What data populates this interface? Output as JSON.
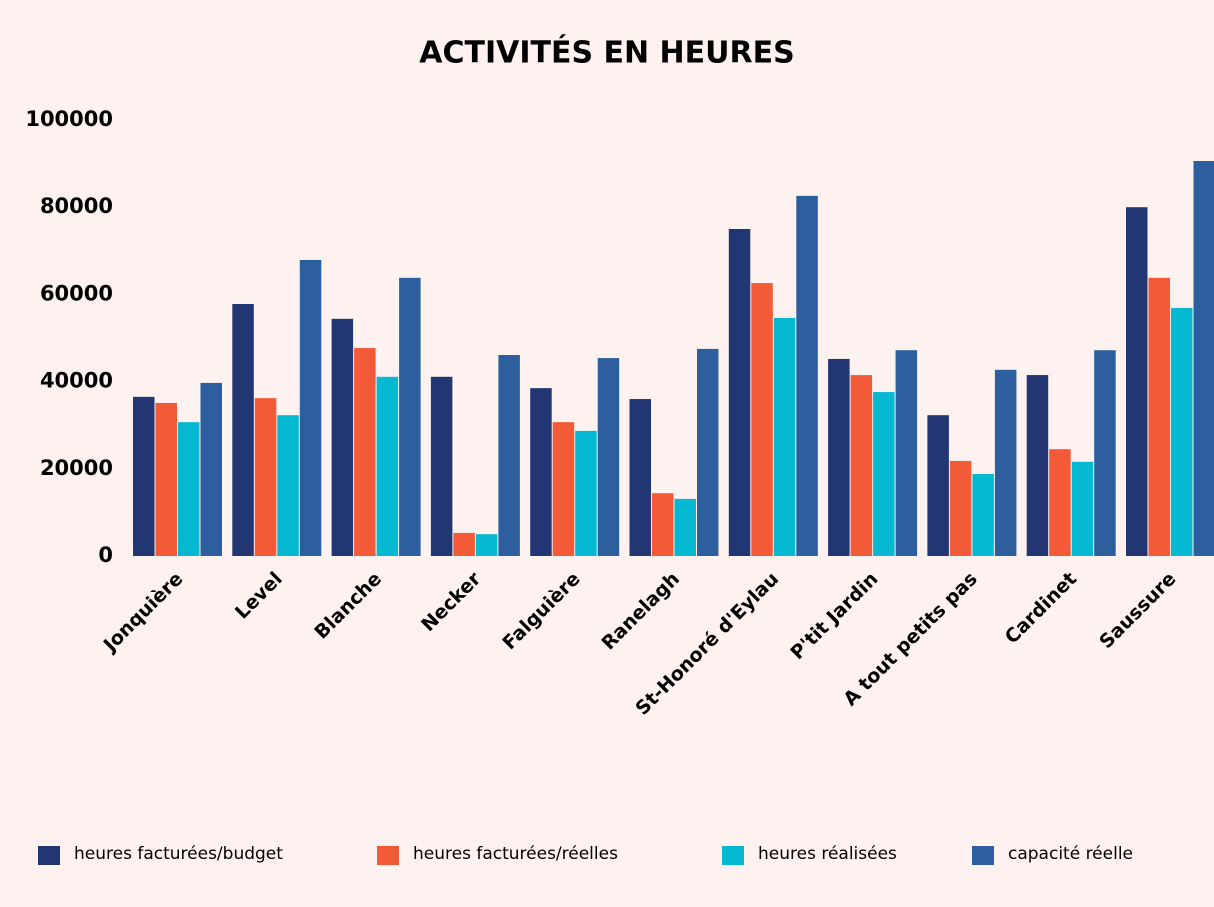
{
  "chart_data": {
    "type": "bar",
    "title": "ACTIVITÉS EN HEURES",
    "categories": [
      "Jonquière",
      "Level",
      "Blanche",
      "Necker",
      "Falguière",
      "Ranelagh",
      "St-Honoré d'Eylau",
      "P'tit Jardin",
      "A tout petits pas",
      "Cardinet",
      "Saussure"
    ],
    "series": [
      {
        "name": "heures facturées/budget",
        "color": "#233674",
        "values": [
          36500,
          57800,
          54400,
          41100,
          38500,
          36000,
          75000,
          45200,
          32300,
          41500,
          80000
        ]
      },
      {
        "name": "heures facturées/réelles",
        "color": "#f35b38",
        "values": [
          35100,
          36200,
          47700,
          5300,
          30700,
          14400,
          62600,
          41500,
          21800,
          24500,
          63800
        ]
      },
      {
        "name": "heures réalisées",
        "color": "#06b9d2",
        "values": [
          30700,
          32300,
          41100,
          5000,
          28700,
          13100,
          54600,
          37600,
          18800,
          21600,
          56900
        ]
      },
      {
        "name": "capacité réelle",
        "color": "#2d5f9e",
        "values": [
          39700,
          67900,
          63800,
          46100,
          45400,
          47500,
          82600,
          47200,
          42700,
          47200,
          90600
        ]
      }
    ],
    "ylim": [
      0,
      100000
    ],
    "yticks": [
      0,
      20000,
      40000,
      60000,
      80000,
      100000
    ],
    "grid": false
  }
}
